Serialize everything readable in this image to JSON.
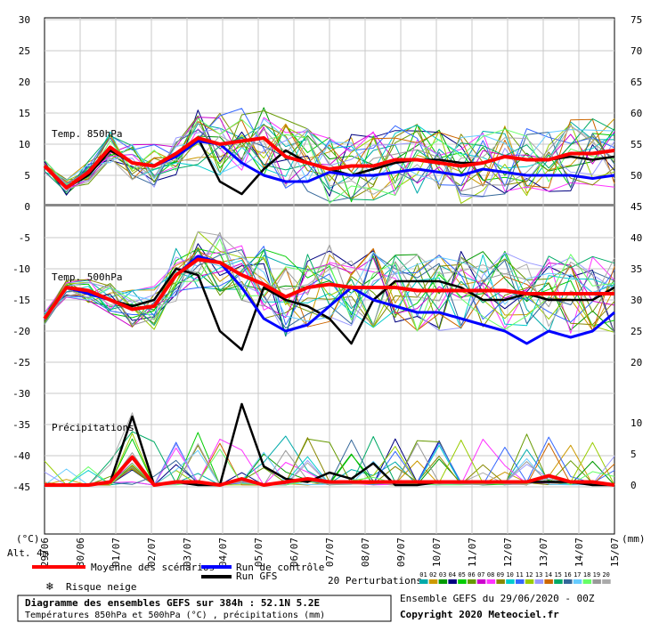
{
  "chart_data": {
    "type": "line",
    "title": "Diagramme des ensembles GEFS sur 384h : 52.1N 5.2E",
    "subtitle": "Températures 850hPa et 500hPa (°C) , précipitations (mm)",
    "ensemble_label": "Ensemble GEFS du 29/06/2020 - 00Z",
    "copyright": "Copyright 2020 Meteociel.fr",
    "unit_left": "(°C)",
    "unit_right": "(mm)",
    "alt_label": "Alt. 4m",
    "panel_labels": [
      "Temp. 850hPa",
      "Temp. 500hPa",
      "Précipitations"
    ],
    "left_ticks": [
      "30",
      "25",
      "20",
      "15",
      "10",
      "5",
      "0",
      "-5",
      "-10",
      "-15",
      "-20",
      "-25",
      "-30",
      "-35",
      "-40",
      "-45"
    ],
    "right_ticks_temp": [
      "75",
      "70",
      "65",
      "60",
      "55",
      "50",
      "45",
      "40",
      "35",
      "30",
      "25",
      "20"
    ],
    "right_ticks_precip": [
      "10",
      "5",
      "0"
    ],
    "x_labels": [
      "29/06",
      "30/06",
      "01/07",
      "02/07",
      "03/07",
      "04/07",
      "05/07",
      "06/07",
      "07/07",
      "08/07",
      "09/07",
      "10/07",
      "11/07",
      "12/07",
      "13/07",
      "14/07",
      "15/07"
    ],
    "grid": true,
    "legend": {
      "mean": "Moyenne des scénarios",
      "control": "Run de contrôle",
      "gfs": "Run GFS",
      "snow": "Risque neige",
      "perturbations": "20 Perturbations",
      "perturbation_ids": [
        "01",
        "02",
        "03",
        "04",
        "05",
        "06",
        "07",
        "08",
        "09",
        "10",
        "11",
        "12",
        "13",
        "14",
        "15",
        "16",
        "17",
        "18",
        "19",
        "20"
      ]
    },
    "colors": {
      "mean": "#ff0000",
      "control": "#0000ff",
      "gfs": "#000000",
      "snow": "#3399ff",
      "perturbations": [
        "#00aaaa",
        "#cc9900",
        "#009900",
        "#000080",
        "#00cc00",
        "#669900",
        "#cc00cc",
        "#ff33ff",
        "#888800",
        "#00cccc",
        "#3366ff",
        "#99cc00",
        "#9999ff",
        "#cc6600",
        "#00aa66",
        "#336699",
        "#66ccff",
        "#66ff66",
        "#999999",
        "#aaaaaa"
      ]
    },
    "series": [
      {
        "name": "Moyenne des scénarios",
        "panel": "850hPa",
        "values": [
          6.5,
          3,
          5.5,
          9.5,
          7,
          6.5,
          8.5,
          11,
          10,
          10.5,
          11,
          8,
          7,
          6,
          6.5,
          6.5,
          7.5,
          7.5,
          7,
          6.5,
          7,
          8,
          7.5,
          7.5,
          8.5,
          8.5,
          9
        ]
      },
      {
        "name": "Run de contrôle",
        "panel": "850hPa",
        "values": [
          6.5,
          3,
          5.5,
          9.5,
          7,
          6.5,
          8,
          10.5,
          10,
          7,
          5,
          4,
          4,
          5.5,
          5,
          5,
          5.5,
          6,
          5.5,
          5,
          6,
          5.5,
          5,
          5,
          5,
          4.5,
          5
        ]
      },
      {
        "name": "Run GFS",
        "panel": "850hPa",
        "values": [
          6.5,
          3,
          5,
          9,
          7,
          6.5,
          8,
          11,
          4,
          2,
          6,
          9,
          7,
          6,
          5,
          6,
          7,
          7.5,
          7.5,
          7,
          7,
          8,
          7.5,
          7.5,
          8,
          7.5,
          8
        ]
      },
      {
        "name": "Moyenne des scénarios",
        "panel": "500hPa",
        "values": [
          -18,
          -13,
          -13.5,
          -15,
          -16.5,
          -16,
          -11,
          -8.5,
          -9,
          -11,
          -12.5,
          -14.5,
          -13,
          -12.5,
          -13,
          -13,
          -13,
          -13.5,
          -13.5,
          -13.5,
          -13.5,
          -13.5,
          -14,
          -14,
          -14,
          -14,
          -14
        ]
      },
      {
        "name": "Run de contrôle",
        "panel": "500hPa",
        "values": [
          -18,
          -13,
          -14,
          -15,
          -16.5,
          -16,
          -11,
          -8,
          -9,
          -13,
          -18,
          -20,
          -19,
          -16,
          -13,
          -15,
          -16,
          -17,
          -17,
          -18,
          -19,
          -20,
          -22,
          -20,
          -21,
          -20,
          -17
        ]
      },
      {
        "name": "Run GFS",
        "panel": "500hPa",
        "values": [
          -18,
          -13,
          -14,
          -15,
          -16,
          -15,
          -10,
          -11,
          -20,
          -23,
          -13,
          -15,
          -16,
          -18,
          -22,
          -15,
          -12,
          -12,
          -12,
          -13,
          -15,
          -15,
          -14,
          -15,
          -15,
          -15,
          -13
        ]
      },
      {
        "name": "Moyenne des scénarios",
        "panel": "precip",
        "values": [
          0,
          0,
          0,
          0.5,
          4.5,
          0,
          0.5,
          0.5,
          0,
          1,
          0,
          0.5,
          1,
          0.5,
          0.5,
          0.5,
          0.5,
          0.5,
          0.5,
          0.5,
          0.5,
          0.5,
          0.5,
          1.5,
          0.5,
          0.5,
          0
        ]
      },
      {
        "name": "Run GFS",
        "panel": "precip",
        "values": [
          0,
          0,
          0,
          0.5,
          11,
          0,
          0.5,
          0,
          0,
          13,
          3,
          1,
          0.5,
          2,
          1,
          3.5,
          0,
          0,
          0.5,
          0.5,
          0.5,
          0.5,
          0.5,
          0.5,
          0.5,
          0,
          0
        ]
      }
    ]
  }
}
